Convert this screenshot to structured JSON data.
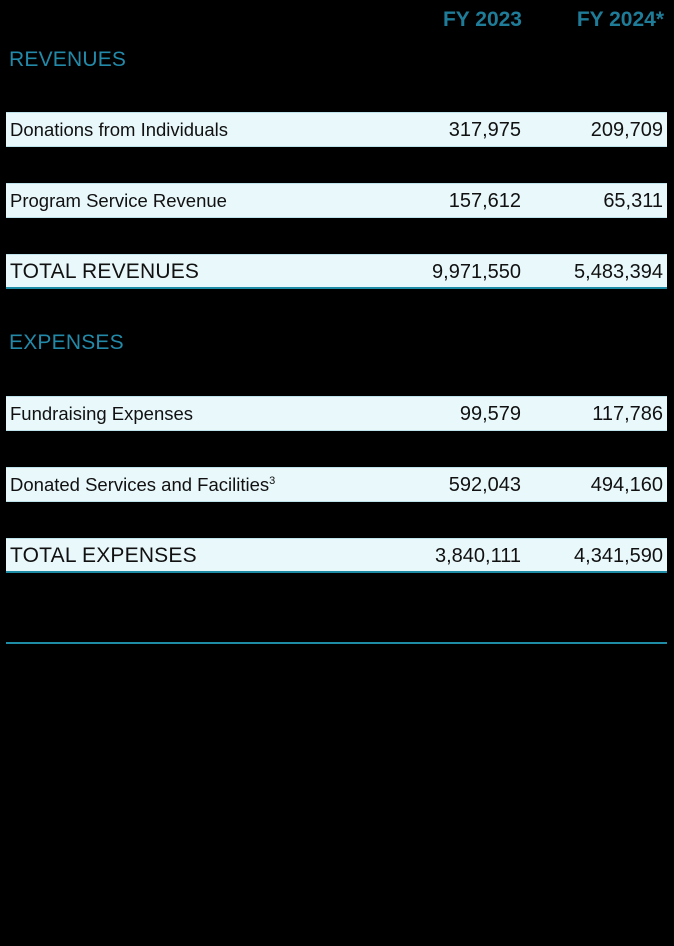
{
  "header": {
    "col1": "FY 2023",
    "col2": "FY 2024*"
  },
  "revenues": {
    "title": "REVENUES",
    "rows": [
      {
        "label": "Donations from Individuals",
        "fy2023": "317,975",
        "fy2024": "209,709"
      },
      {
        "label": "Program Service Revenue",
        "fy2023": "157,612",
        "fy2024": "65,311"
      }
    ],
    "total": {
      "label": "TOTAL REVENUES",
      "fy2023": "9,971,550",
      "fy2024": "5,483,394"
    }
  },
  "expenses": {
    "title": "EXPENSES",
    "rows": [
      {
        "label": "Fundraising Expenses",
        "fy2023": "99,579",
        "fy2024": "117,786"
      },
      {
        "label": "Donated Services and Facilities",
        "footnote": "3",
        "fy2023": "592,043",
        "fy2024": "494,160"
      }
    ],
    "total": {
      "label": "TOTAL EXPENSES",
      "fy2023": "3,840,111",
      "fy2024": "4,341,590"
    }
  },
  "colors": {
    "accent": "#1f8ca6",
    "row_background": "#e9f8fb",
    "page_background": "#000000"
  }
}
